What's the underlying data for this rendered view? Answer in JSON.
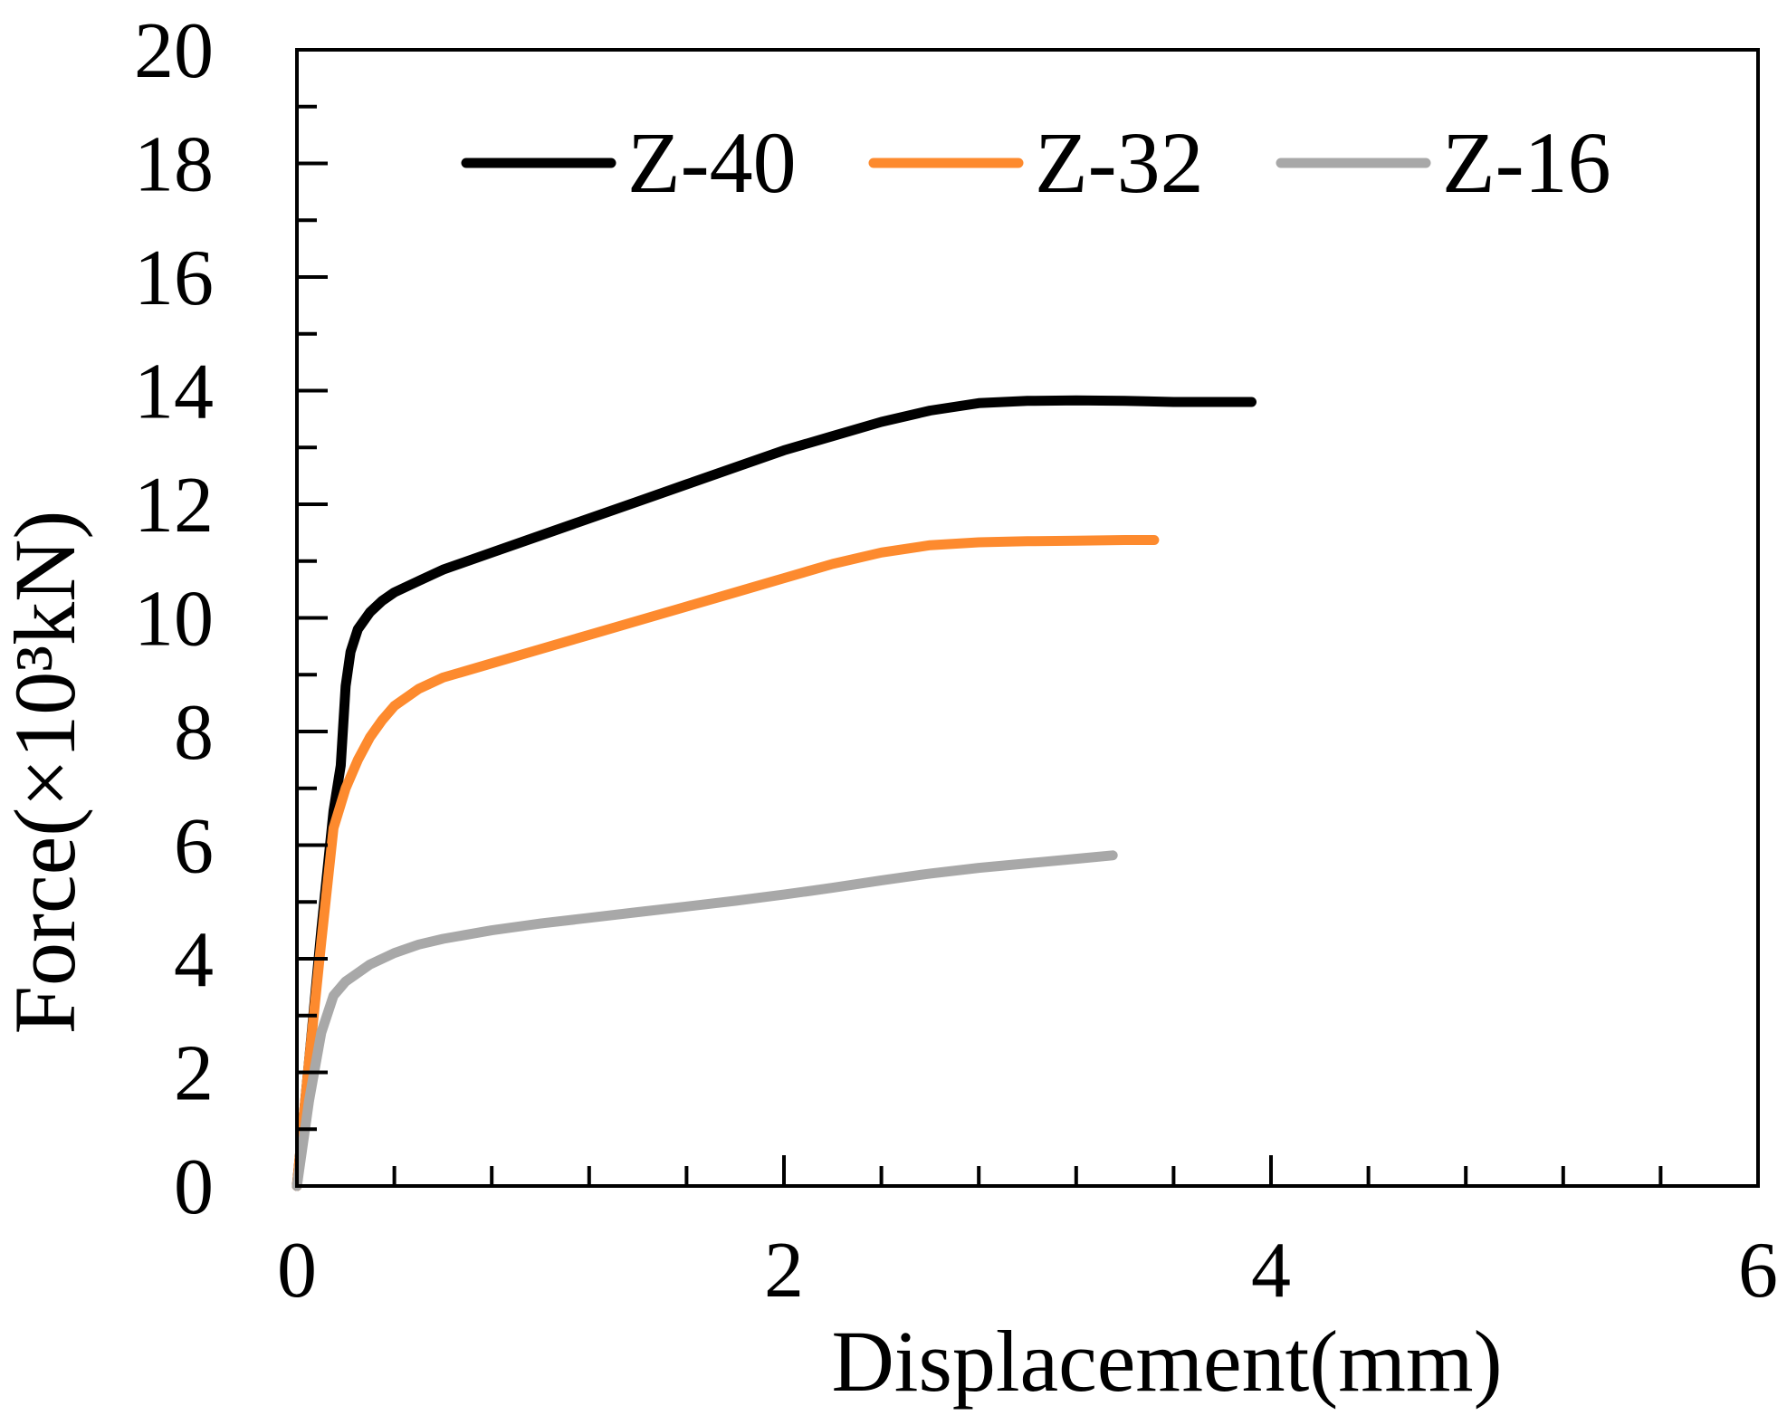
{
  "chart_data": {
    "type": "line",
    "title": "",
    "xlabel": "Displacement(mm)",
    "ylabel": "Force(×10³kN)",
    "xlim": [
      0,
      6
    ],
    "ylim": [
      0,
      20
    ],
    "x_ticks": [
      0,
      2,
      4,
      6
    ],
    "x_minor_step": 0.4,
    "y_ticks": [
      0,
      2,
      4,
      6,
      8,
      10,
      12,
      14,
      16,
      18,
      20
    ],
    "y_minor_step": 1,
    "grid": false,
    "legend_position": "top",
    "series": [
      {
        "name": "Z-40",
        "color": "#000000",
        "x": [
          0,
          0.05,
          0.1,
          0.15,
          0.18,
          0.2,
          0.22,
          0.25,
          0.3,
          0.35,
          0.4,
          0.5,
          0.6,
          0.8,
          1.0,
          1.2,
          1.4,
          1.6,
          1.8,
          2.0,
          2.2,
          2.4,
          2.6,
          2.8,
          3.0,
          3.2,
          3.4,
          3.6,
          3.8,
          3.92
        ],
        "y": [
          0,
          2.2,
          4.5,
          6.6,
          7.4,
          8.8,
          9.4,
          9.8,
          10.1,
          10.3,
          10.45,
          10.65,
          10.85,
          11.15,
          11.45,
          11.75,
          12.05,
          12.35,
          12.65,
          12.95,
          13.2,
          13.45,
          13.65,
          13.78,
          13.82,
          13.83,
          13.82,
          13.8,
          13.8,
          13.8
        ]
      },
      {
        "name": "Z-32",
        "color": "#fd8a2e",
        "x": [
          0,
          0.05,
          0.1,
          0.15,
          0.2,
          0.25,
          0.3,
          0.35,
          0.4,
          0.5,
          0.6,
          0.8,
          1.0,
          1.2,
          1.4,
          1.6,
          1.8,
          2.0,
          2.2,
          2.4,
          2.6,
          2.8,
          3.0,
          3.2,
          3.4,
          3.52
        ],
        "y": [
          0,
          2.2,
          4.3,
          6.3,
          7.0,
          7.5,
          7.9,
          8.2,
          8.45,
          8.75,
          8.95,
          9.2,
          9.45,
          9.7,
          9.95,
          10.2,
          10.45,
          10.7,
          10.95,
          11.15,
          11.28,
          11.33,
          11.35,
          11.36,
          11.37,
          11.37
        ]
      },
      {
        "name": "Z-16",
        "color": "#a8a8a8",
        "x": [
          0,
          0.05,
          0.1,
          0.15,
          0.2,
          0.3,
          0.4,
          0.5,
          0.6,
          0.8,
          1.0,
          1.2,
          1.4,
          1.6,
          1.8,
          2.0,
          2.2,
          2.4,
          2.6,
          2.8,
          3.0,
          3.2,
          3.35
        ],
        "y": [
          0,
          1.5,
          2.7,
          3.35,
          3.6,
          3.9,
          4.1,
          4.25,
          4.35,
          4.5,
          4.62,
          4.72,
          4.82,
          4.92,
          5.02,
          5.13,
          5.25,
          5.38,
          5.5,
          5.6,
          5.68,
          5.76,
          5.82
        ]
      }
    ]
  }
}
